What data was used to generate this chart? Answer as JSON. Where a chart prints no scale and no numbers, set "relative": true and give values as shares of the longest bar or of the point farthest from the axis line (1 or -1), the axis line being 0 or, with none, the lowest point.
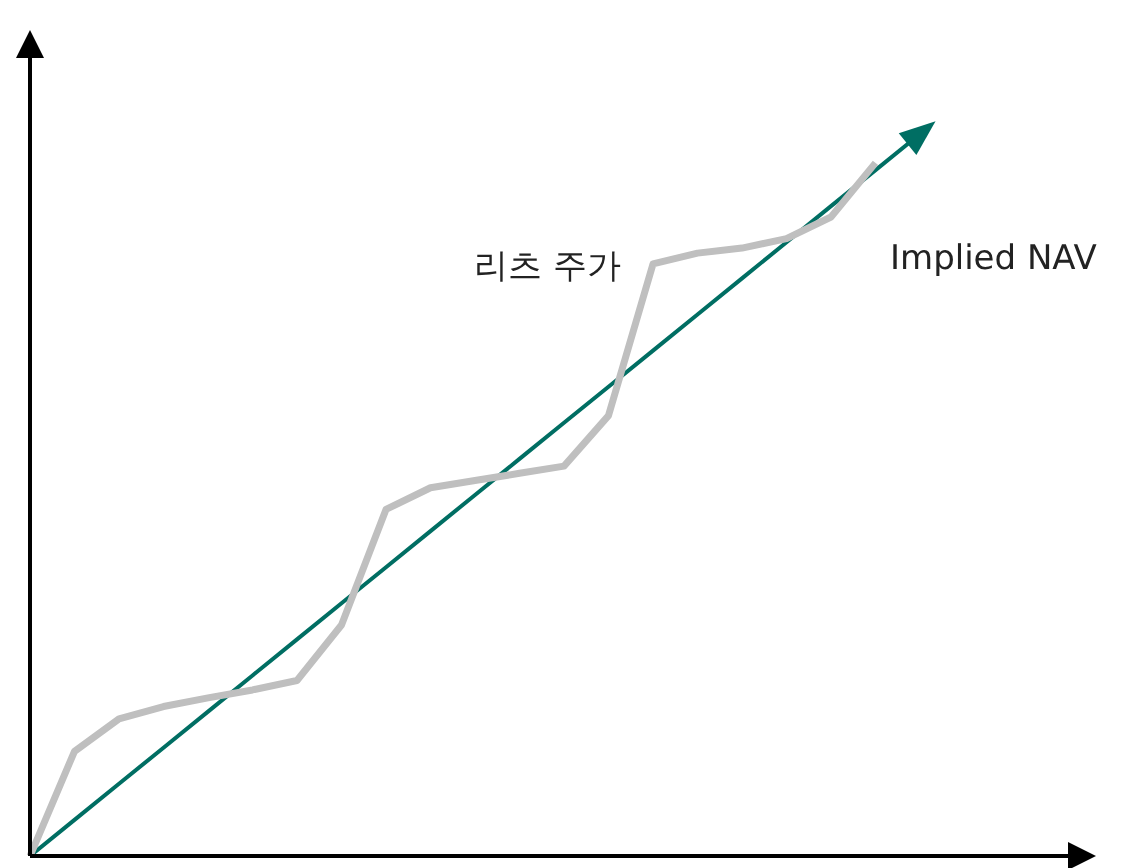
{
  "chart_data": {
    "type": "line",
    "relative": true,
    "grid": false,
    "legend": false,
    "marker": "none",
    "line_style": "solid",
    "categories": [
      null,
      null,
      null,
      null,
      null,
      null,
      null,
      null,
      null,
      null,
      null,
      null,
      null,
      null,
      null,
      null,
      null,
      null,
      null,
      null,
      null
    ],
    "series": [
      {
        "name": "리츠 주가",
        "color": "#bfbfbf",
        "values": [
          0,
          0.145,
          0.19,
          0.207,
          0.219,
          0.23,
          0.243,
          0.32,
          0.48,
          0.51,
          0.52,
          0.53,
          0.54,
          0.61,
          0.82,
          0.835,
          0.842,
          0.855,
          0.885,
          0.96,
          null
        ]
      },
      {
        "name": "Implied NAV",
        "color": "#006e63",
        "values": [
          0,
          0.05,
          0.1,
          0.15,
          0.2,
          0.25,
          0.3,
          0.35,
          0.4,
          0.45,
          0.5,
          0.55,
          0.6,
          0.65,
          0.7,
          0.75,
          0.8,
          0.85,
          0.9,
          0.95,
          1
        ]
      }
    ]
  }
}
